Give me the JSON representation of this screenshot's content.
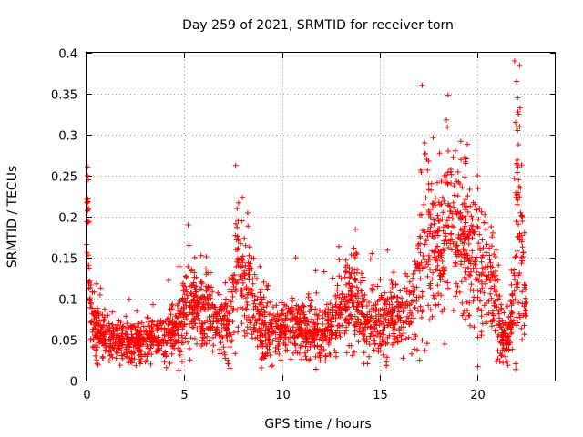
{
  "chart_data": {
    "type": "scatter",
    "title": "Day 259 of 2021, SRMTID for receiver torn",
    "xlabel": "GPS time / hours",
    "ylabel": "SRMTID / TECUs",
    "xlim": [
      0,
      24
    ],
    "ylim": [
      0,
      0.4
    ],
    "xticks": [
      0,
      5,
      10,
      15,
      20
    ],
    "xtick_labels": [
      "0",
      "5",
      "10",
      "15",
      "20"
    ],
    "yticks": [
      0,
      0.05,
      0.1,
      0.15,
      0.2,
      0.25,
      0.3,
      0.35,
      0.4
    ],
    "ytick_labels": [
      "0",
      "0.05",
      "0.1",
      "0.15",
      "0.2",
      "0.25",
      "0.3",
      "0.35",
      "0.4"
    ],
    "grid": true,
    "marker": "+",
    "color": "#ff0000",
    "series": [
      {
        "name": "SRMTID",
        "envelope": {
          "x": [
            0,
            0.05,
            0.1,
            0.2,
            0.3,
            0.5,
            1,
            1.5,
            2,
            2.5,
            3,
            3.5,
            4,
            4.5,
            5,
            5.2,
            5.5,
            6,
            6.5,
            7,
            7.5,
            7.7,
            7.9,
            8.2,
            8.5,
            9,
            9.5,
            10,
            10.5,
            11,
            11.5,
            12,
            12.5,
            13,
            13.5,
            14,
            14.5,
            15,
            15.5,
            16,
            16.5,
            17,
            17.3,
            17.6,
            18,
            18.5,
            19,
            19.5,
            20,
            20.3,
            20.6,
            21,
            21.3,
            21.6,
            21.8,
            22,
            22.2,
            22.5
          ],
          "y": [
            0.15,
            0.24,
            0.14,
            0.08,
            0.07,
            0.06,
            0.05,
            0.05,
            0.045,
            0.045,
            0.05,
            0.05,
            0.05,
            0.06,
            0.08,
            0.1,
            0.09,
            0.08,
            0.075,
            0.07,
            0.08,
            0.14,
            0.12,
            0.12,
            0.1,
            0.06,
            0.06,
            0.06,
            0.07,
            0.065,
            0.06,
            0.055,
            0.06,
            0.09,
            0.1,
            0.08,
            0.075,
            0.07,
            0.075,
            0.08,
            0.09,
            0.13,
            0.18,
            0.17,
            0.16,
            0.18,
            0.17,
            0.16,
            0.15,
            0.14,
            0.12,
            0.09,
            0.05,
            0.045,
            0.09,
            0.17,
            0.16,
            0.07
          ]
        },
        "spread": [
          0.01,
          0.03,
          0.03,
          0.025,
          0.02,
          0.02,
          0.015,
          0.015,
          0.015,
          0.015,
          0.015,
          0.015,
          0.015,
          0.02,
          0.025,
          0.03,
          0.025,
          0.025,
          0.025,
          0.02,
          0.03,
          0.06,
          0.04,
          0.04,
          0.03,
          0.02,
          0.02,
          0.02,
          0.02,
          0.02,
          0.02,
          0.02,
          0.02,
          0.03,
          0.03,
          0.03,
          0.025,
          0.025,
          0.025,
          0.025,
          0.03,
          0.05,
          0.06,
          0.05,
          0.05,
          0.05,
          0.05,
          0.05,
          0.05,
          0.045,
          0.035,
          0.03,
          0.015,
          0.015,
          0.03,
          0.1,
          0.08,
          0.02
        ],
        "peaks": [
          [
            0.05,
            0.25
          ],
          [
            0.1,
            0.245
          ],
          [
            0.1,
            0.21
          ],
          [
            5.2,
            0.19
          ],
          [
            5.25,
            0.165
          ],
          [
            7.7,
            0.21
          ],
          [
            7.95,
            0.195
          ],
          [
            10.7,
            0.15
          ],
          [
            14.6,
            0.155
          ],
          [
            17.3,
            0.29
          ],
          [
            17.4,
            0.27
          ],
          [
            18.5,
            0.28
          ],
          [
            18.3,
            0.25
          ],
          [
            19.4,
            0.265
          ],
          [
            19.1,
            0.24
          ],
          [
            17.5,
            0.24
          ],
          [
            20.0,
            0.25
          ],
          [
            20.1,
            0.21
          ],
          [
            21.9,
            0.39
          ],
          [
            22.0,
            0.365
          ],
          [
            22.05,
            0.345
          ],
          [
            22.1,
            0.325
          ],
          [
            21.95,
            0.315
          ],
          [
            22.05,
            0.305
          ],
          [
            22.0,
            0.265
          ],
          [
            22.1,
            0.245
          ],
          [
            22.2,
            0.235
          ],
          [
            22.3,
            0.2
          ]
        ],
        "count": 2600
      }
    ]
  }
}
